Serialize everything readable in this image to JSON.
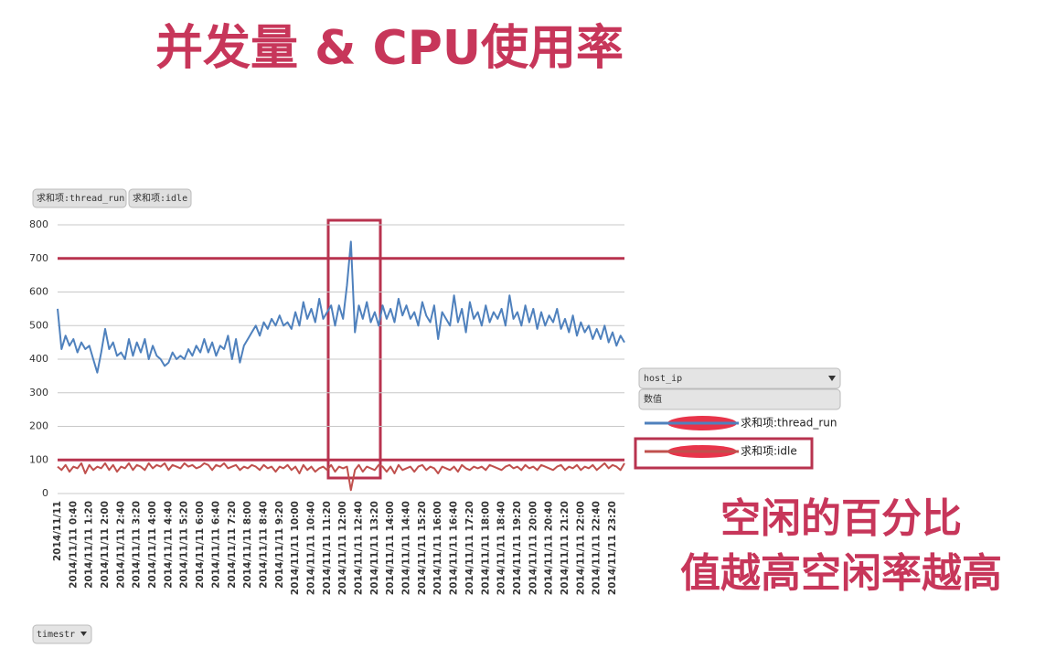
{
  "chart_data": {
    "type": "line",
    "title": "并发量 & CPU使用率",
    "categories": [
      "2014/11/11",
      null,
      null,
      null,
      "2014/11/11 0:40",
      null,
      null,
      null,
      "2014/11/11 1:20",
      null,
      null,
      null,
      "2014/11/11 2:00",
      null,
      null,
      null,
      "2014/11/11 2:40",
      null,
      null,
      null,
      "2014/11/11 3:20",
      null,
      null,
      null,
      "2014/11/11 4:00",
      null,
      null,
      null,
      "2014/11/11 4:40",
      null,
      null,
      null,
      "2014/11/11 5:20",
      null,
      null,
      null,
      "2014/11/11 6:00",
      null,
      null,
      null,
      "2014/11/11 6:40",
      null,
      null,
      null,
      "2014/11/11 7:20",
      null,
      null,
      null,
      "2014/11/11 8:00",
      null,
      null,
      null,
      "2014/11/11 8:40",
      null,
      null,
      null,
      "2014/11/11 9:20",
      null,
      null,
      null,
      "2014/11/11 10:00",
      null,
      null,
      null,
      "2014/11/11 10:40",
      null,
      null,
      null,
      "2014/11/11 11:20",
      null,
      null,
      null,
      "2014/11/11 12:00",
      null,
      null,
      null,
      "2014/11/11 12:40",
      null,
      null,
      null,
      "2014/11/11 13:20",
      null,
      null,
      null,
      "2014/11/11 14:00",
      null,
      null,
      null,
      "2014/11/11 14:40",
      null,
      null,
      null,
      "2014/11/11 15:20",
      null,
      null,
      null,
      "2014/11/11 16:00",
      null,
      null,
      null,
      "2014/11/11 16:40",
      null,
      null,
      null,
      "2014/11/11 17:20",
      null,
      null,
      null,
      "2014/11/11 18:00",
      null,
      null,
      null,
      "2014/11/11 18:40",
      null,
      null,
      null,
      "2014/11/11 19:20",
      null,
      null,
      null,
      "2014/11/11 20:00",
      null,
      null,
      null,
      "2014/11/11 20:40",
      null,
      null,
      null,
      "2014/11/11 21:20",
      null,
      null,
      null,
      "2014/11/11 22:00",
      null,
      null,
      null,
      "2014/11/11 22:40",
      null,
      null,
      null,
      "2014/11/11 23:20",
      null,
      null,
      null
    ],
    "series": [
      {
        "name": "求和项:thread_run",
        "color": "#4f81bd",
        "values": [
          550,
          430,
          470,
          440,
          460,
          420,
          450,
          430,
          440,
          400,
          360,
          420,
          490,
          430,
          450,
          410,
          420,
          400,
          460,
          410,
          450,
          420,
          460,
          400,
          440,
          410,
          400,
          380,
          390,
          420,
          400,
          410,
          400,
          430,
          410,
          440,
          420,
          460,
          420,
          450,
          410,
          440,
          430,
          470,
          400,
          460,
          390,
          440,
          460,
          480,
          500,
          470,
          510,
          490,
          520,
          500,
          530,
          500,
          510,
          490,
          540,
          500,
          570,
          520,
          550,
          510,
          580,
          520,
          540,
          560,
          500,
          560,
          520,
          620,
          750,
          480,
          560,
          520,
          570,
          510,
          540,
          500,
          560,
          520,
          550,
          510,
          580,
          530,
          560,
          520,
          540,
          500,
          570,
          530,
          510,
          560,
          460,
          540,
          520,
          500,
          590,
          510,
          550,
          480,
          570,
          520,
          540,
          500,
          560,
          510,
          540,
          520,
          550,
          500,
          590,
          520,
          540,
          500,
          560,
          510,
          550,
          490,
          540,
          500,
          530,
          510,
          550,
          490,
          520,
          480,
          530,
          470,
          510,
          480,
          500,
          460,
          490,
          460,
          500,
          450,
          480,
          440,
          470,
          450
        ]
      },
      {
        "name": "求和项:idle",
        "color": "#c0504d",
        "values": [
          80,
          70,
          85,
          65,
          80,
          75,
          90,
          60,
          85,
          70,
          80,
          75,
          90,
          70,
          85,
          65,
          80,
          75,
          90,
          70,
          85,
          80,
          70,
          90,
          75,
          85,
          80,
          90,
          70,
          85,
          80,
          75,
          90,
          80,
          85,
          75,
          80,
          90,
          85,
          70,
          85,
          80,
          90,
          75,
          80,
          85,
          70,
          80,
          75,
          85,
          80,
          70,
          85,
          75,
          80,
          65,
          80,
          75,
          85,
          70,
          80,
          60,
          85,
          70,
          80,
          65,
          75,
          80,
          70,
          85,
          65,
          80,
          75,
          80,
          10,
          70,
          85,
          65,
          80,
          75,
          70,
          85,
          80,
          65,
          80,
          60,
          85,
          70,
          75,
          80,
          65,
          80,
          85,
          70,
          80,
          75,
          60,
          80,
          75,
          70,
          80,
          65,
          85,
          75,
          70,
          80,
          75,
          80,
          70,
          85,
          80,
          75,
          70,
          80,
          85,
          75,
          80,
          70,
          85,
          75,
          80,
          70,
          85,
          80,
          75,
          70,
          80,
          85,
          70,
          80,
          75,
          85,
          70,
          80,
          75,
          85,
          70,
          80,
          90,
          75,
          85,
          80,
          70,
          90
        ]
      }
    ],
    "ylim": [
      0,
      800
    ],
    "yticks": [
      0,
      100,
      200,
      300,
      400,
      500,
      600,
      700,
      800
    ],
    "grid": true,
    "reference_lines": [
      700,
      100
    ],
    "annotation": [
      "空闲的百分比",
      "值越高空闲率越高"
    ]
  },
  "ui": {
    "field_buttons": [
      "求和项:thread_run",
      "求和项:idle"
    ],
    "host_filter": "host_ip",
    "values_button": "数值",
    "axis_field": "timestr"
  }
}
